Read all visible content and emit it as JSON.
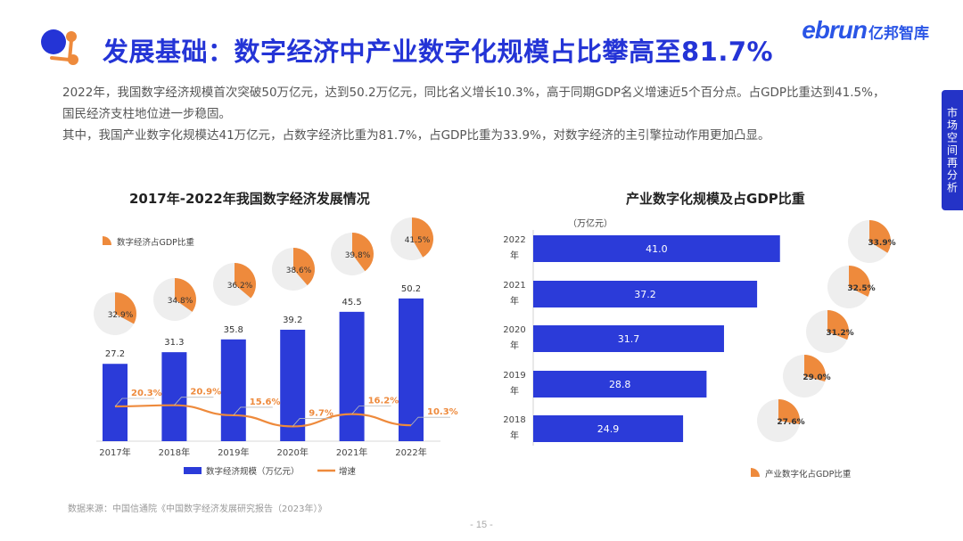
{
  "header": {
    "title": "发展基础：数字经济中产业数字化规模占比攀高至81.7%",
    "brand_en": "ebrun",
    "brand_cn": "亿邦智库",
    "side_tab": "市场空间再分析"
  },
  "summary": {
    "line1": "2022年，我国数字经济规模首次突破50万亿元，达到50.2万亿元，同比名义增长10.3%，高于同期GDP名义增速近5个百分点。占GDP比重达到41.5%，国民经济支柱地位进一步稳固。",
    "line2": "其中，我国产业数字化规模达41万亿元，占数字经济比重为81.7%，占GDP比重为33.9%，对数字经济的主引擎拉动作用更加凸显。"
  },
  "colors": {
    "primary": "#2434d6",
    "bar": "#2b3bd9",
    "accent": "#ee8a3c",
    "pie_bg": "#eeeeee"
  },
  "chart_data": [
    {
      "type": "bar",
      "title": "2017年-2022年我国数字经济发展情况",
      "categories": [
        "2017年",
        "2018年",
        "2019年",
        "2020年",
        "2021年",
        "2022年"
      ],
      "series": [
        {
          "name": "数字经济规模（万亿元）",
          "type": "bar",
          "values": [
            27.2,
            31.3,
            35.8,
            39.2,
            45.5,
            50.2
          ]
        },
        {
          "name": "增速",
          "type": "line",
          "values": [
            20.3,
            20.9,
            15.6,
            9.7,
            16.2,
            10.3
          ],
          "labels": [
            "20.3%",
            "20.9%",
            "15.6%",
            "9.7%",
            "16.2%",
            "10.3%"
          ]
        },
        {
          "name": "数字经济占GDP比重",
          "type": "pie",
          "values": [
            32.9,
            34.8,
            36.2,
            38.6,
            39.8,
            41.5
          ],
          "labels": [
            "32.9%",
            "34.8%",
            "36.2%",
            "38.6%",
            "39.8%",
            "41.5%"
          ]
        }
      ],
      "legend_top": "数字经济占GDP比重",
      "legend_bottom": [
        "数字经济规模（万亿元）",
        "增速"
      ]
    },
    {
      "type": "bar",
      "orientation": "horizontal",
      "title": "产业数字化规模及占GDP比重",
      "unit": "（万亿元）",
      "categories": [
        [
          "2022",
          "年"
        ],
        [
          "2021",
          "年"
        ],
        [
          "2020",
          "年"
        ],
        [
          "2019",
          "年"
        ],
        [
          "2018",
          "年"
        ]
      ],
      "values": [
        41.0,
        37.2,
        31.7,
        28.8,
        24.9
      ],
      "value_labels": [
        "41.0",
        "37.2",
        "31.7",
        "28.8",
        "24.9"
      ],
      "pie_values": [
        33.9,
        32.5,
        31.2,
        29.0,
        27.6
      ],
      "pie_labels": [
        "33.9%",
        "32.5%",
        "31.2%",
        "29.0%",
        "27.6%"
      ],
      "legend": "产业数字化占GDP比重"
    }
  ],
  "footer": {
    "source": "数据来源：中国信通院《中国数字经济发展研究报告（2023年）》",
    "page": "- 15 -"
  }
}
